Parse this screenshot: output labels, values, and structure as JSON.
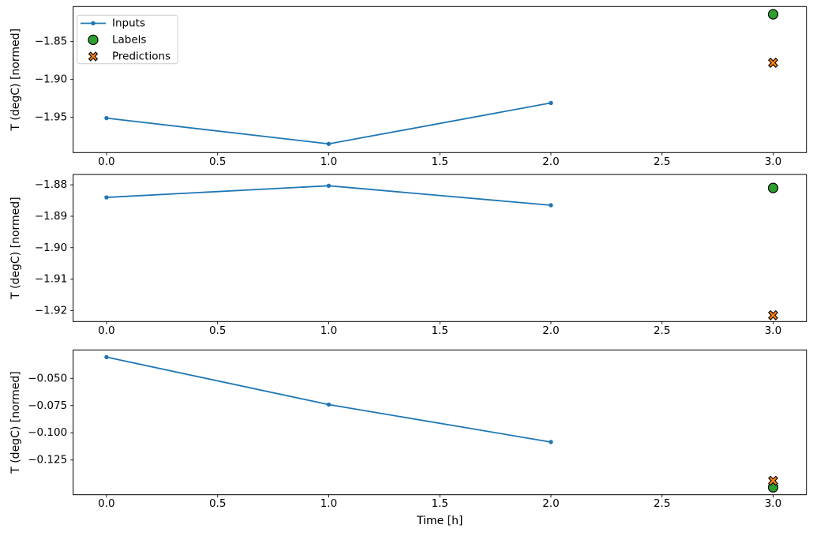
{
  "figure": {
    "background": "#ffffff",
    "title": "",
    "legend": {
      "position": "upper left",
      "frame_color": "#cccccc",
      "entries": [
        {
          "label": "Inputs",
          "marker": "line-dot",
          "color": "#1f77b4"
        },
        {
          "label": "Labels",
          "marker": "circle",
          "color": "#2ca02c"
        },
        {
          "label": "Predictions",
          "marker": "x",
          "color": "#ff7f0e"
        }
      ]
    }
  },
  "colors": {
    "inputs": "#1f77b4",
    "labels": "#2ca02c",
    "predictions": "#ff7f0e",
    "marker_edge": "#000000",
    "axis": "#000000",
    "legend_frame": "#cccccc"
  },
  "chart_data": [
    {
      "type": "line",
      "ylabel": "T (degC) [normed]",
      "xlabel": "",
      "xlim": [
        -0.15,
        3.15
      ],
      "ylim": [
        -1.9965,
        -1.8038
      ],
      "grid": false,
      "legend": true,
      "xticks": {
        "values": [
          0.0,
          0.5,
          1.0,
          1.5,
          2.0,
          2.5,
          3.0
        ],
        "labels": [
          "0.0",
          "0.5",
          "1.0",
          "1.5",
          "2.0",
          "2.5",
          "3.0"
        ]
      },
      "yticks": {
        "values": [
          -1.85,
          -1.9,
          -1.95
        ],
        "labels": [
          "−1.85",
          "−1.90",
          "−1.95"
        ]
      },
      "series": [
        {
          "name": "Inputs",
          "type": "line",
          "marker": "dot",
          "color": "#1f77b4",
          "x": [
            0,
            1,
            2
          ],
          "y": [
            -1.951,
            -1.985,
            -1.931
          ]
        },
        {
          "name": "Labels",
          "type": "scatter",
          "marker": "circle",
          "color": "#2ca02c",
          "x": [
            3
          ],
          "y": [
            -1.814
          ]
        },
        {
          "name": "Predictions",
          "type": "scatter",
          "marker": "x",
          "color": "#ff7f0e",
          "x": [
            3
          ],
          "y": [
            -1.878
          ]
        }
      ]
    },
    {
      "type": "line",
      "ylabel": "T (degC) [normed]",
      "xlabel": "",
      "xlim": [
        -0.15,
        3.15
      ],
      "ylim": [
        -1.9235,
        -1.8767
      ],
      "grid": false,
      "legend": false,
      "xticks": {
        "values": [
          0.0,
          0.5,
          1.0,
          1.5,
          2.0,
          2.5,
          3.0
        ],
        "labels": [
          "0.0",
          "0.5",
          "1.0",
          "1.5",
          "2.0",
          "2.5",
          "3.0"
        ]
      },
      "yticks": {
        "values": [
          -1.88,
          -1.89,
          -1.9,
          -1.91,
          -1.92
        ],
        "labels": [
          "−1.88",
          "−1.89",
          "−1.90",
          "−1.91",
          "−1.92"
        ]
      },
      "series": [
        {
          "name": "Inputs",
          "type": "line",
          "marker": "dot",
          "color": "#1f77b4",
          "x": [
            0,
            1,
            2
          ],
          "y": [
            -1.884,
            -1.8803,
            -1.8865
          ]
        },
        {
          "name": "Labels",
          "type": "scatter",
          "marker": "circle",
          "color": "#2ca02c",
          "x": [
            3
          ],
          "y": [
            -1.881
          ]
        },
        {
          "name": "Predictions",
          "type": "scatter",
          "marker": "x",
          "color": "#ff7f0e",
          "x": [
            3
          ],
          "y": [
            -1.9215
          ]
        }
      ]
    },
    {
      "type": "line",
      "ylabel": "T (degC) [normed]",
      "xlabel": "Time [h]",
      "xlim": [
        -0.15,
        3.15
      ],
      "ylim": [
        -0.1569,
        -0.0239
      ],
      "grid": false,
      "legend": false,
      "xticks": {
        "values": [
          0.0,
          0.5,
          1.0,
          1.5,
          2.0,
          2.5,
          3.0
        ],
        "labels": [
          "0.0",
          "0.5",
          "1.0",
          "1.5",
          "2.0",
          "2.5",
          "3.0"
        ]
      },
      "yticks": {
        "values": [
          -0.05,
          -0.075,
          -0.1,
          -0.125
        ],
        "labels": [
          "−0.050",
          "−0.075",
          "−0.100",
          "−0.125"
        ]
      },
      "series": [
        {
          "name": "Inputs",
          "type": "line",
          "marker": "dot",
          "color": "#1f77b4",
          "x": [
            0,
            1,
            2
          ],
          "y": [
            -0.0305,
            -0.0741,
            -0.1085
          ]
        },
        {
          "name": "Labels",
          "type": "scatter",
          "marker": "circle",
          "color": "#2ca02c",
          "x": [
            3
          ],
          "y": [
            -0.1501
          ]
        },
        {
          "name": "Predictions",
          "type": "scatter",
          "marker": "x",
          "color": "#ff7f0e",
          "x": [
            3
          ],
          "y": [
            -0.1441
          ]
        }
      ]
    }
  ]
}
